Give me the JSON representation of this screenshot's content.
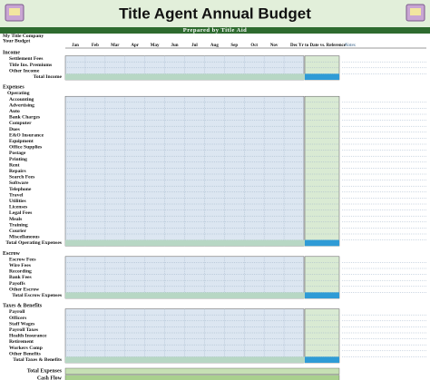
{
  "header": {
    "title": "Title Agent Annual Budget",
    "subtitle": "Prepared by Title Aid",
    "company": "My Title Company",
    "budget_label": "Your Budget"
  },
  "months": [
    "Jan",
    "Feb",
    "Mar",
    "Apr",
    "May",
    "Jun",
    "Jul",
    "Aug",
    "Sep",
    "Oct",
    "Nov",
    "Dec"
  ],
  "total_column": "Yr to Date vs. Reference",
  "notes_header": "Notes",
  "sections": [
    {
      "title": "Income",
      "rows": [
        "Settlement Fees",
        "Title Ins. Premiums",
        "Other Income"
      ],
      "total": "Total Income"
    },
    {
      "title": "Expenses",
      "subtitle": "Operating",
      "rows": [
        "Accounting",
        "Advertising",
        "Auto",
        "Bank Charges",
        "Computer",
        "Dues",
        "E&O Insurance",
        "Equipment",
        "Office Supplies",
        "Postage",
        "Printing",
        "Rent",
        "Repairs",
        "Search Fees",
        "Software",
        "Telephone",
        "Travel",
        "Utilities",
        "Licenses",
        "Legal Fees",
        "Meals",
        "Training",
        "Courier",
        "Miscellaneous"
      ],
      "total": "Total Operating Expenses"
    },
    {
      "title": "Escrow",
      "rows": [
        "Escrow Fees",
        "Wire Fees",
        "Recording",
        "Bank Fees",
        "Payoffs",
        "Other Escrow"
      ],
      "total": "Total Escrow Expenses"
    },
    {
      "title": "Taxes & Benefits",
      "rows": [
        "Payroll",
        "Officers",
        "Staff Wages",
        "Payroll Taxes",
        "Health Insurance",
        "Retirement",
        "Workers Comp",
        "Other Benefits"
      ],
      "total": "Total Taxes & Benefits"
    }
  ],
  "footer": {
    "total": "Total Expenses",
    "cashflow": "Cash Flow"
  }
}
